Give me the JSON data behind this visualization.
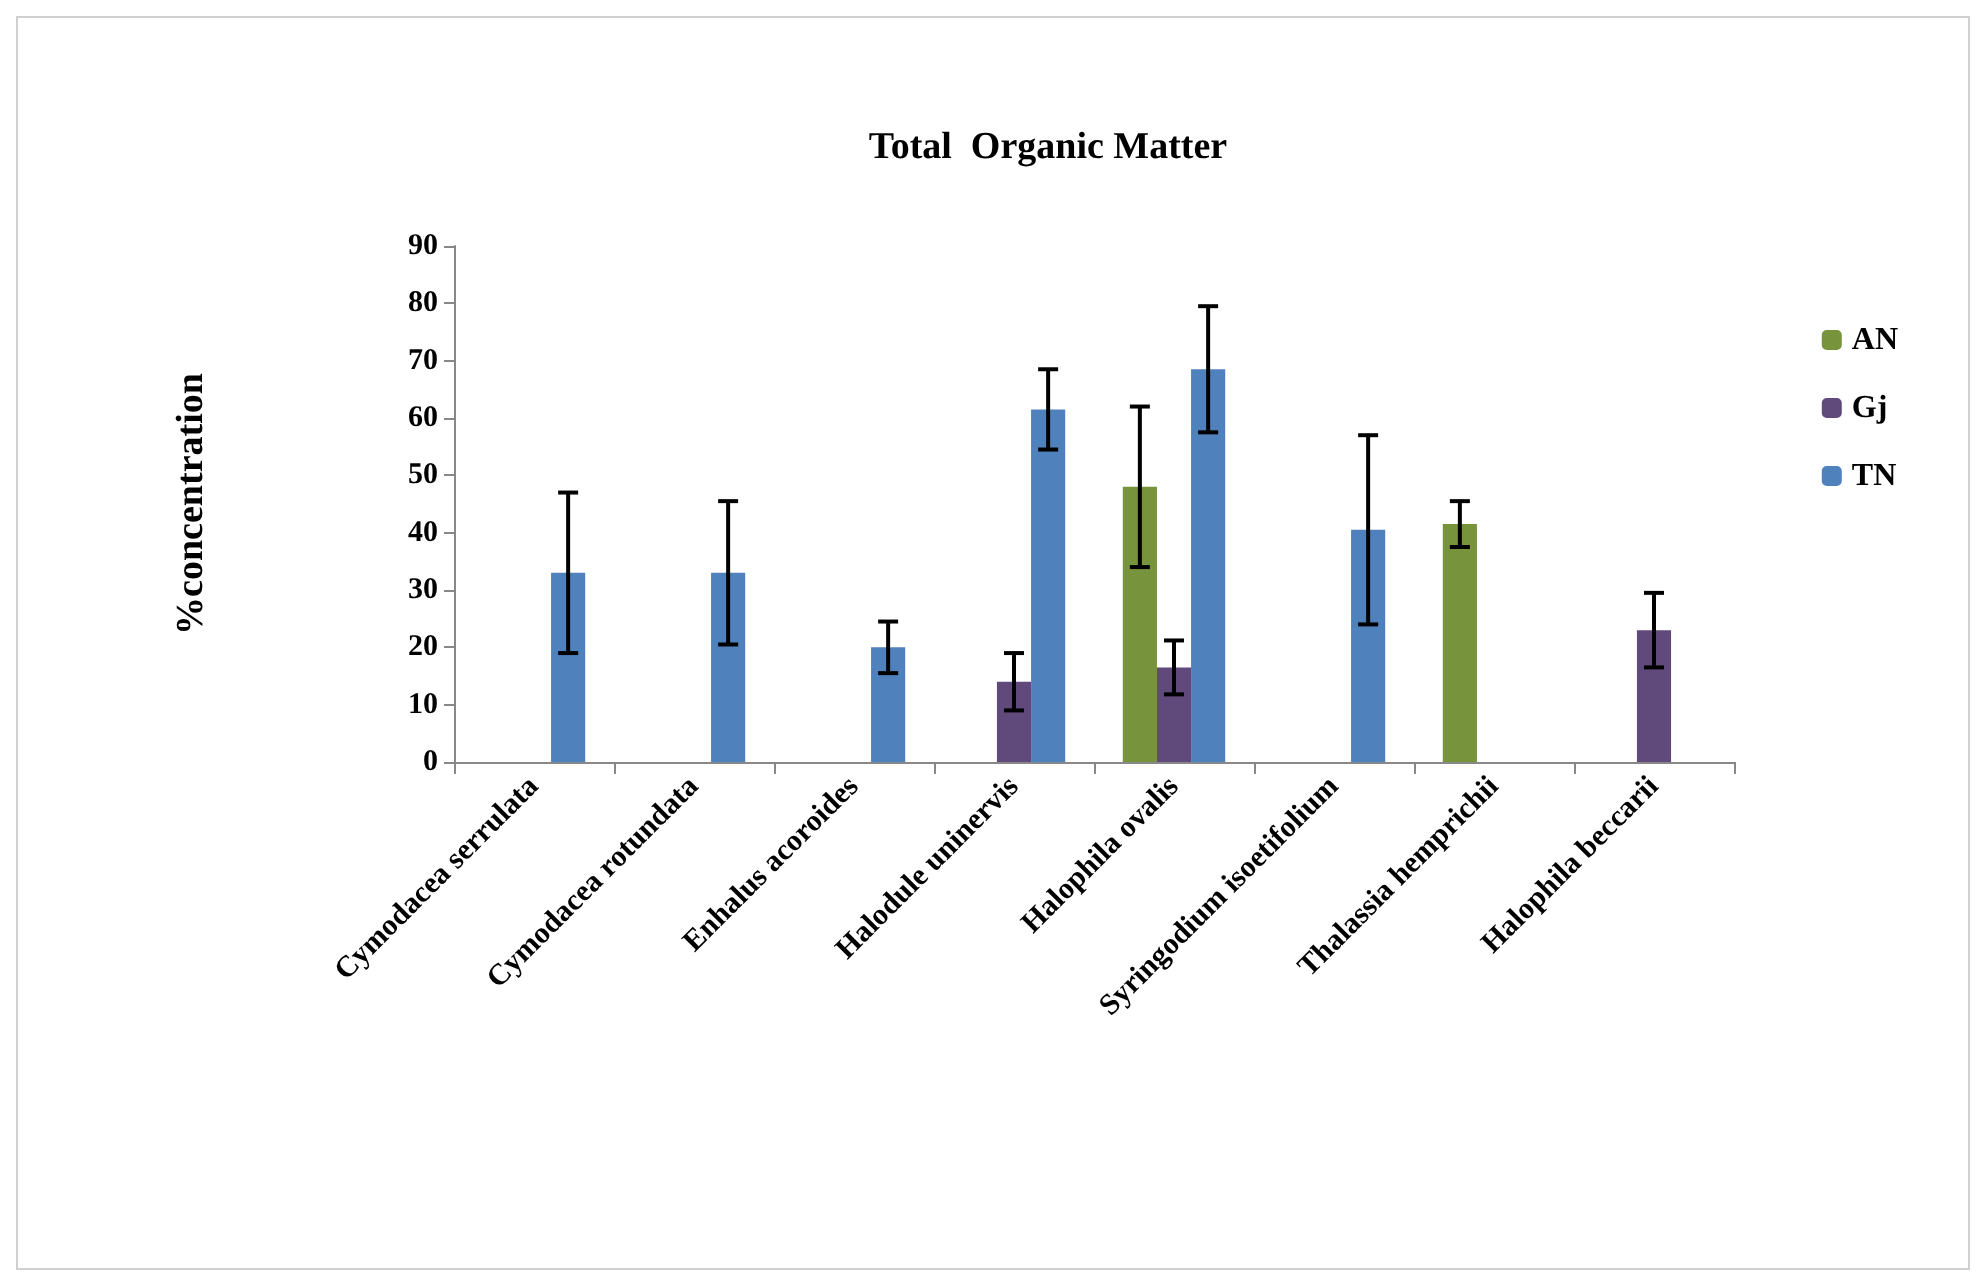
{
  "chart_data": {
    "type": "bar",
    "title": "Total  Organic Matter",
    "ylabel": "%concentration",
    "categories": [
      "Cymodacea serrulata",
      "Cymodacea rotundata",
      "Enhalus acoroides",
      "Halodule uninervis",
      "Halophila ovalis",
      "Syringodium isoetifolium",
      "Thalassia hemprichii",
      "Halophila beccarii"
    ],
    "series": [
      {
        "name": "AN",
        "color": "#77933c",
        "values": [
          null,
          null,
          null,
          null,
          48,
          null,
          41.5,
          null
        ],
        "errors": [
          null,
          null,
          null,
          null,
          14,
          null,
          4,
          null
        ]
      },
      {
        "name": "Gj",
        "color": "#604a7b",
        "values": [
          null,
          null,
          null,
          14,
          16.5,
          null,
          null,
          23
        ],
        "errors": [
          null,
          null,
          null,
          5,
          4.7,
          null,
          null,
          6.5
        ]
      },
      {
        "name": "TN",
        "color": "#4f81bd",
        "values": [
          33,
          33,
          20,
          61.5,
          68.5,
          40.5,
          null,
          null
        ],
        "errors": [
          14,
          12.5,
          4.5,
          7,
          11,
          16.5,
          null,
          null
        ]
      }
    ],
    "ylim": [
      0,
      90
    ],
    "yticks": [
      0,
      10,
      20,
      30,
      40,
      50,
      60,
      70,
      80,
      90
    ],
    "grid": false,
    "legend": "right"
  }
}
